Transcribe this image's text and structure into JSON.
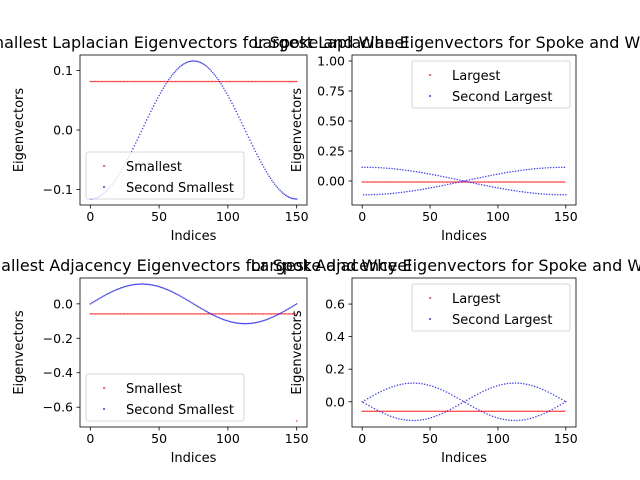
{
  "colors": {
    "smallest": "#ff0000",
    "second": "#0000ff",
    "axis": "#000000"
  },
  "chart_data": [
    {
      "type": "scatter",
      "title": "Smallest Laplacian Eigenvectors for Spoke and Wheel",
      "xlabel": "Indices",
      "ylabel": "Eigenvectors",
      "xlim": [
        -7.5,
        157.5
      ],
      "ylim": [
        -0.126,
        0.126
      ],
      "xticks": [
        0,
        50,
        100,
        150
      ],
      "yticks": [
        -0.1,
        0.0,
        0.1
      ],
      "ytick_labels": [
        "−0.1",
        "0.0",
        "0.1"
      ],
      "legend_position": "lower-left",
      "n_points": 151,
      "series": [
        {
          "name": "Smallest",
          "color": "red",
          "form": "constant",
          "value": 0.0814
        },
        {
          "name": "Second Smallest",
          "color": "blue",
          "form": "cosine",
          "amplitude": 0.116,
          "center": 75,
          "period": 150,
          "phase_sign": -1
        }
      ]
    },
    {
      "type": "scatter",
      "title": "Largest Laplacian Eigenvectors for Spoke and Wheel",
      "xlabel": "Indices",
      "ylabel": "Eigenvectors",
      "xlim": [
        -7.5,
        157.5
      ],
      "ylim": [
        -0.2,
        1.05
      ],
      "xticks": [
        0,
        50,
        100,
        150
      ],
      "yticks": [
        0.0,
        0.25,
        0.5,
        0.75,
        1.0
      ],
      "ytick_labels": [
        "0.00",
        "0.25",
        "0.50",
        "0.75",
        "1.00"
      ],
      "legend_position": "top-right",
      "n_points": 151,
      "series": [
        {
          "name": "Largest",
          "color": "red",
          "form": "constant_with_end",
          "value": -0.0082,
          "end_value": 0.993
        },
        {
          "name": "Second Largest",
          "color": "blue",
          "form": "pair_cosine",
          "amplitude": 0.115,
          "period": 300
        }
      ]
    },
    {
      "type": "scatter",
      "title": "Smallest Adjacency Eigenvectors for Spoke and Wheel",
      "xlabel": "Indices",
      "ylabel": "Eigenvectors",
      "xlim": [
        -7.5,
        157.5
      ],
      "ylim": [
        -0.715,
        0.15
      ],
      "xticks": [
        0,
        50,
        100,
        150
      ],
      "yticks": [
        -0.6,
        -0.4,
        -0.2,
        0.0
      ],
      "ytick_labels": [
        "−0.6",
        "−0.4",
        "−0.2",
        "0.0"
      ],
      "legend_position": "lower-left",
      "n_points": 151,
      "series": [
        {
          "name": "Smallest",
          "color": "red",
          "form": "constant_with_end",
          "value": -0.058,
          "end_value": -0.68
        },
        {
          "name": "Second Smallest",
          "color": "blue",
          "form": "sine",
          "amplitude": 0.115,
          "period": 150
        }
      ]
    },
    {
      "type": "scatter",
      "title": "Largest Adjacency Eigenvectors for Spoke and Wheel",
      "xlabel": "Indices",
      "ylabel": "Eigenvectors",
      "xlim": [
        -7.5,
        157.5
      ],
      "ylim": [
        -0.155,
        0.76
      ],
      "xticks": [
        0,
        50,
        100,
        150
      ],
      "yticks": [
        0.0,
        0.2,
        0.4,
        0.6
      ],
      "ytick_labels": [
        "0.0",
        "0.2",
        "0.4",
        "0.6"
      ],
      "legend_position": "top-right",
      "n_points": 151,
      "series": [
        {
          "name": "Largest",
          "color": "red",
          "form": "constant_with_end",
          "value": -0.058,
          "end_value": 0.72
        },
        {
          "name": "Second Largest",
          "color": "blue",
          "form": "pair_sine",
          "amplitude": 0.115,
          "period": 150
        }
      ]
    }
  ]
}
